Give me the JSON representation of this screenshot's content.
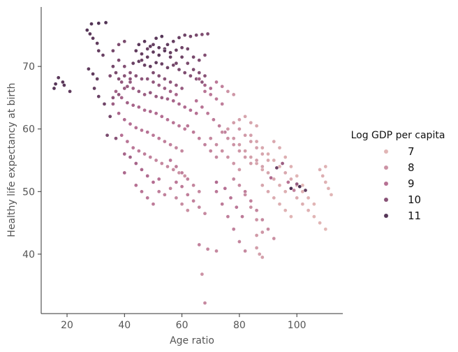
{
  "chart_data": {
    "type": "scatter",
    "xlabel": "Age ratio",
    "ylabel": "Healthy life expectancy at birth",
    "xlim": [
      11,
      116
    ],
    "ylim": [
      30.5,
      79.5
    ],
    "xticks": [
      20,
      40,
      60,
      80,
      100
    ],
    "yticks": [
      40,
      50,
      60,
      70
    ],
    "grid": false,
    "legend": {
      "title": "Log GDP per capita",
      "placement": "right",
      "entries": [
        {
          "label": "7",
          "value": 7
        },
        {
          "label": "8",
          "value": 8
        },
        {
          "label": "9",
          "value": 9
        },
        {
          "label": "10",
          "value": 10
        },
        {
          "label": "11",
          "value": 11
        }
      ]
    },
    "hue_range": [
      6.5,
      11.8
    ],
    "palette": {
      "low": "#ecc6bd",
      "mid": "#b36b91",
      "high": "#2d1e3e"
    },
    "points": [
      [
        28.5,
        76.8,
        11.0
      ],
      [
        31.0,
        76.9,
        11.1
      ],
      [
        33.5,
        77.0,
        11.1
      ],
      [
        27.0,
        75.8,
        11.0
      ],
      [
        28.0,
        75.2,
        10.9
      ],
      [
        29.0,
        74.5,
        10.8
      ],
      [
        30.5,
        73.7,
        10.8
      ],
      [
        31.0,
        72.5,
        10.7
      ],
      [
        32.5,
        71.8,
        10.6
      ],
      [
        27.5,
        69.6,
        10.8
      ],
      [
        29.0,
        68.8,
        10.8
      ],
      [
        30.5,
        68.0,
        10.7
      ],
      [
        17.0,
        68.2,
        10.9
      ],
      [
        16.0,
        67.2,
        11.0
      ],
      [
        15.5,
        66.5,
        11.0
      ],
      [
        18.5,
        67.5,
        10.9
      ],
      [
        19.0,
        67.0,
        10.9
      ],
      [
        21.0,
        66.0,
        10.8
      ],
      [
        29.5,
        66.5,
        10.7
      ],
      [
        31.0,
        65.2,
        10.6
      ],
      [
        33.0,
        64.0,
        10.5
      ],
      [
        35.0,
        62.0,
        10.4
      ],
      [
        34.0,
        59.0,
        10.3
      ],
      [
        37.0,
        58.5,
        10.0
      ],
      [
        45,
        73.5,
        10.9
      ],
      [
        47,
        74.0,
        10.9
      ],
      [
        49,
        73.2,
        10.8
      ],
      [
        51,
        74.5,
        10.9
      ],
      [
        53,
        74.8,
        11.0
      ],
      [
        55,
        73.5,
        10.8
      ],
      [
        57,
        74.0,
        10.7
      ],
      [
        59,
        74.6,
        10.6
      ],
      [
        61,
        75.0,
        10.5
      ],
      [
        63,
        74.8,
        10.4
      ],
      [
        65,
        75.0,
        10.3
      ],
      [
        67,
        75.1,
        10.2
      ],
      [
        69,
        75.2,
        10.2
      ],
      [
        44,
        72.5,
        10.8
      ],
      [
        46,
        72.0,
        10.7
      ],
      [
        48,
        71.5,
        10.7
      ],
      [
        50,
        72.3,
        10.8
      ],
      [
        52,
        71.8,
        10.9
      ],
      [
        54,
        72.8,
        10.8
      ],
      [
        56,
        72.2,
        10.7
      ],
      [
        58,
        72.6,
        10.6
      ],
      [
        60,
        73.0,
        10.5
      ],
      [
        62,
        72.8,
        10.4
      ],
      [
        64,
        71.5,
        10.3
      ],
      [
        66,
        71.0,
        10.2
      ],
      [
        68,
        71.8,
        10.1
      ],
      [
        43,
        70.5,
        10.6
      ],
      [
        45,
        70.8,
        10.7
      ],
      [
        47,
        70.2,
        10.6
      ],
      [
        49,
        70.0,
        10.7
      ],
      [
        51,
        70.6,
        10.8
      ],
      [
        53,
        70.4,
        10.6
      ],
      [
        55,
        69.8,
        10.5
      ],
      [
        57,
        70.2,
        10.4
      ],
      [
        59,
        69.5,
        10.3
      ],
      [
        61,
        69.0,
        10.2
      ],
      [
        63,
        68.5,
        10.1
      ],
      [
        65,
        68.0,
        10.0
      ],
      [
        67,
        67.5,
        9.9
      ],
      [
        38,
        73.5,
        10.2
      ],
      [
        40,
        74.0,
        10.3
      ],
      [
        36,
        72.5,
        10.4
      ],
      [
        38,
        71.0,
        10.2
      ],
      [
        40,
        70.0,
        10.1
      ],
      [
        42,
        69.0,
        10.0
      ],
      [
        39,
        67.5,
        9.8
      ],
      [
        41,
        66.8,
        9.7
      ],
      [
        43,
        66.5,
        9.6
      ],
      [
        45,
        66.0,
        9.7
      ],
      [
        47,
        65.5,
        9.6
      ],
      [
        49,
        65.8,
        9.8
      ],
      [
        51,
        65.2,
        9.7
      ],
      [
        53,
        65.0,
        9.6
      ],
      [
        55,
        64.8,
        9.5
      ],
      [
        57,
        64.5,
        9.4
      ],
      [
        59,
        64.0,
        9.3
      ],
      [
        61,
        63.5,
        9.2
      ],
      [
        63,
        63.0,
        9.1
      ],
      [
        65,
        62.5,
        9.0
      ],
      [
        37,
        66.0,
        9.5
      ],
      [
        39,
        65.0,
        9.4
      ],
      [
        41,
        64.2,
        9.5
      ],
      [
        43,
        63.8,
        9.4
      ],
      [
        45,
        63.5,
        9.3
      ],
      [
        47,
        63.0,
        9.2
      ],
      [
        49,
        62.8,
        9.3
      ],
      [
        51,
        62.5,
        9.2
      ],
      [
        53,
        62.0,
        9.1
      ],
      [
        55,
        61.5,
        9.0
      ],
      [
        57,
        61.0,
        8.9
      ],
      [
        59,
        60.5,
        8.8
      ],
      [
        61,
        60.0,
        8.7
      ],
      [
        36,
        64.0,
        9.6
      ],
      [
        38,
        62.5,
        9.3
      ],
      [
        40,
        61.5,
        9.2
      ],
      [
        42,
        60.8,
        9.1
      ],
      [
        44,
        60.2,
        9.0
      ],
      [
        46,
        59.8,
        8.9
      ],
      [
        48,
        59.5,
        9.0
      ],
      [
        50,
        59.0,
        8.8
      ],
      [
        52,
        58.5,
        8.7
      ],
      [
        54,
        58.0,
        8.6
      ],
      [
        56,
        57.5,
        8.5
      ],
      [
        58,
        57.0,
        8.4
      ],
      [
        60,
        56.5,
        8.3
      ],
      [
        39,
        59.0,
        9.0
      ],
      [
        41,
        58.0,
        8.9
      ],
      [
        43,
        57.0,
        8.8
      ],
      [
        45,
        56.5,
        8.7
      ],
      [
        47,
        56.0,
        8.6
      ],
      [
        49,
        55.5,
        8.5
      ],
      [
        51,
        55.0,
        8.4
      ],
      [
        53,
        54.5,
        8.3
      ],
      [
        55,
        54.0,
        8.3
      ],
      [
        57,
        53.5,
        8.2
      ],
      [
        59,
        53.0,
        8.1
      ],
      [
        61,
        52.5,
        8.0
      ],
      [
        40,
        56.0,
        9.4
      ],
      [
        40,
        53.0,
        9.3
      ],
      [
        44,
        51.0,
        9.0
      ],
      [
        46,
        50.0,
        8.9
      ],
      [
        48,
        49.0,
        8.8
      ],
      [
        50,
        48.0,
        8.7
      ],
      [
        52,
        50.0,
        8.6
      ],
      [
        54,
        49.5,
        8.5
      ],
      [
        56,
        50.5,
        8.4
      ],
      [
        58,
        49.0,
        8.3
      ],
      [
        60,
        48.0,
        8.2
      ],
      [
        62,
        47.0,
        8.1
      ],
      [
        58,
        51.5,
        8.8
      ],
      [
        60,
        50.8,
        8.7
      ],
      [
        62,
        49.5,
        8.6
      ],
      [
        64,
        48.5,
        8.5
      ],
      [
        66,
        47.5,
        8.4
      ],
      [
        68,
        46.5,
        8.3
      ],
      [
        62,
        60.5,
        8.8
      ],
      [
        64,
        59.5,
        8.7
      ],
      [
        66,
        58.5,
        8.6
      ],
      [
        68,
        57.5,
        8.5
      ],
      [
        70,
        56.5,
        8.4
      ],
      [
        72,
        55.5,
        8.3
      ],
      [
        65,
        64.5,
        9.0
      ],
      [
        67,
        63.5,
        8.9
      ],
      [
        69,
        62.5,
        8.8
      ],
      [
        71,
        61.5,
        8.7
      ],
      [
        73,
        60.5,
        8.6
      ],
      [
        75,
        59.5,
        8.5
      ],
      [
        68,
        66.0,
        8.9
      ],
      [
        70,
        65.5,
        8.8
      ],
      [
        72,
        64.8,
        8.7
      ],
      [
        74,
        64.0,
        8.6
      ],
      [
        76,
        66.0,
        8.0
      ],
      [
        78,
        65.5,
        7.9
      ],
      [
        66,
        68.0,
        9.6
      ],
      [
        68,
        67.0,
        9.4
      ],
      [
        70,
        66.5,
        9.2
      ],
      [
        72,
        67.5,
        8.8
      ],
      [
        74,
        66.8,
        8.5
      ],
      [
        70,
        58.5,
        8.3
      ],
      [
        72,
        57.5,
        8.2
      ],
      [
        74,
        56.5,
        8.1
      ],
      [
        76,
        55.5,
        8.0
      ],
      [
        78,
        54.5,
        7.9
      ],
      [
        80,
        53.5,
        7.8
      ],
      [
        74,
        59.5,
        8.2
      ],
      [
        76,
        58.5,
        8.1
      ],
      [
        78,
        57.5,
        8.0
      ],
      [
        80,
        56.5,
        7.9
      ],
      [
        82,
        55.5,
        7.8
      ],
      [
        84,
        54.5,
        7.7
      ],
      [
        78,
        58.5,
        7.9
      ],
      [
        80,
        57.5,
        7.8
      ],
      [
        82,
        56.5,
        7.7
      ],
      [
        84,
        55.5,
        7.6
      ],
      [
        86,
        54.5,
        7.5
      ],
      [
        88,
        53.5,
        7.4
      ],
      [
        80,
        60.0,
        7.9
      ],
      [
        82,
        59.0,
        7.8
      ],
      [
        84,
        58.0,
        7.7
      ],
      [
        86,
        57.0,
        7.6
      ],
      [
        88,
        56.0,
        7.5
      ],
      [
        90,
        55.0,
        7.4
      ],
      [
        84,
        59.0,
        7.6
      ],
      [
        86,
        58.0,
        7.5
      ],
      [
        88,
        57.0,
        7.4
      ],
      [
        90,
        56.0,
        7.3
      ],
      [
        92,
        55.0,
        7.2
      ],
      [
        94,
        54.0,
        7.1
      ],
      [
        86,
        55.0,
        7.7
      ],
      [
        88,
        54.0,
        7.6
      ],
      [
        90,
        53.0,
        7.5
      ],
      [
        92,
        52.0,
        7.4
      ],
      [
        94,
        51.0,
        7.3
      ],
      [
        96,
        50.0,
        7.2
      ],
      [
        88,
        51.0,
        7.5
      ],
      [
        90,
        50.0,
        7.4
      ],
      [
        92,
        49.0,
        7.3
      ],
      [
        94,
        48.0,
        7.2
      ],
      [
        96,
        47.0,
        7.1
      ],
      [
        98,
        46.0,
        7.0
      ],
      [
        92,
        58.0,
        7.4
      ],
      [
        94,
        57.0,
        7.3
      ],
      [
        96,
        55.5,
        7.2
      ],
      [
        98,
        54.0,
        7.1
      ],
      [
        100,
        52.5,
        7.0
      ],
      [
        102,
        51.0,
        6.9
      ],
      [
        96,
        53.0,
        7.4
      ],
      [
        98,
        52.0,
        7.3
      ],
      [
        100,
        51.0,
        7.3
      ],
      [
        102,
        50.0,
        7.2
      ],
      [
        104,
        49.0,
        7.1
      ],
      [
        106,
        48.0,
        7.0
      ],
      [
        100,
        49.0,
        7.3
      ],
      [
        102,
        48.0,
        7.2
      ],
      [
        104,
        47.0,
        7.1
      ],
      [
        106,
        46.0,
        7.0
      ],
      [
        108,
        45.0,
        7.0
      ],
      [
        110,
        44.0,
        6.9
      ],
      [
        108,
        53.5,
        7.2
      ],
      [
        109,
        52.5,
        7.2
      ],
      [
        110,
        51.5,
        7.1
      ],
      [
        111,
        50.5,
        7.1
      ],
      [
        112,
        49.5,
        7.0
      ],
      [
        110,
        54.0,
        7.1
      ],
      [
        98,
        50.5,
        11.2
      ],
      [
        101,
        50.8,
        11.1
      ],
      [
        103,
        50.2,
        10.8
      ],
      [
        100,
        51.2,
        9.8
      ],
      [
        72,
        50.0,
        8.8
      ],
      [
        74,
        48.0,
        8.7
      ],
      [
        76,
        46.0,
        8.6
      ],
      [
        78,
        44.0,
        8.5
      ],
      [
        80,
        42.0,
        8.4
      ],
      [
        82,
        40.5,
        8.3
      ],
      [
        82,
        50.0,
        8.6
      ],
      [
        84,
        48.5,
        8.5
      ],
      [
        86,
        47.0,
        8.4
      ],
      [
        88,
        45.5,
        8.3
      ],
      [
        90,
        44.0,
        8.2
      ],
      [
        92,
        42.5,
        8.1
      ],
      [
        78,
        52.0,
        8.4
      ],
      [
        80,
        51.0,
        8.3
      ],
      [
        82,
        49.5,
        8.2
      ],
      [
        84,
        47.5,
        8.1
      ],
      [
        86,
        45.5,
        8.0
      ],
      [
        88,
        43.5,
        7.9
      ],
      [
        86,
        41.0,
        7.7
      ],
      [
        87,
        40.0,
        7.6
      ],
      [
        88,
        39.5,
        7.6
      ],
      [
        86,
        43.0,
        7.8
      ],
      [
        66,
        41.5,
        8.5
      ],
      [
        69,
        40.8,
        8.4
      ],
      [
        72,
        40.5,
        8.3
      ],
      [
        67,
        36.8,
        8.0
      ],
      [
        68,
        32.2,
        8.3
      ],
      [
        42,
        55.5,
        9.5
      ],
      [
        44,
        54.5,
        9.4
      ],
      [
        46,
        53.5,
        9.3
      ],
      [
        48,
        52.5,
        9.2
      ],
      [
        50,
        51.5,
        9.1
      ],
      [
        52,
        52.0,
        9.0
      ],
      [
        56,
        55.0,
        8.8
      ],
      [
        58,
        54.0,
        8.7
      ],
      [
        60,
        53.0,
        8.6
      ],
      [
        62,
        52.0,
        8.5
      ],
      [
        64,
        51.0,
        8.4
      ],
      [
        66,
        50.0,
        8.3
      ],
      [
        48,
        68.0,
        9.9
      ],
      [
        50,
        67.5,
        9.8
      ],
      [
        52,
        67.0,
        9.7
      ],
      [
        54,
        66.5,
        9.6
      ],
      [
        56,
        66.0,
        9.5
      ],
      [
        58,
        65.5,
        9.4
      ],
      [
        44,
        68.5,
        10.0
      ],
      [
        46,
        68.0,
        9.9
      ],
      [
        42,
        67.5,
        9.8
      ],
      [
        40,
        66.5,
        9.7
      ],
      [
        38,
        65.5,
        9.8
      ],
      [
        36,
        65.0,
        9.9
      ],
      [
        50,
        69.0,
        10.2
      ],
      [
        52,
        68.5,
        10.1
      ],
      [
        54,
        68.0,
        10.0
      ],
      [
        56,
        67.5,
        9.9
      ],
      [
        58,
        67.0,
        9.8
      ],
      [
        60,
        66.5,
        9.7
      ],
      [
        46,
        71.0,
        10.5
      ],
      [
        48,
        72.8,
        10.6
      ],
      [
        50,
        73.5,
        10.7
      ],
      [
        52,
        73.0,
        10.8
      ],
      [
        54,
        72.5,
        10.9
      ],
      [
        56,
        71.5,
        10.6
      ],
      [
        58,
        70.5,
        10.4
      ],
      [
        60,
        71.5,
        10.5
      ],
      [
        62,
        70.5,
        10.3
      ],
      [
        64,
        69.5,
        10.2
      ],
      [
        66,
        69.0,
        10.1
      ],
      [
        68,
        68.5,
        10.0
      ],
      [
        35,
        68.5,
        10.2
      ],
      [
        37,
        69.0,
        10.3
      ],
      [
        36,
        70.0,
        10.4
      ],
      [
        38,
        68.0,
        10.1
      ],
      [
        40,
        68.5,
        10.0
      ],
      [
        42,
        68.0,
        9.9
      ],
      [
        93,
        53.8,
        10.5
      ],
      [
        95,
        54.5,
        9.6
      ],
      [
        91,
        52.2,
        9.2
      ],
      [
        97,
        51.5,
        8.9
      ],
      [
        99,
        50.2,
        8.5
      ],
      [
        72,
        51.5,
        9.2
      ],
      [
        75,
        50.5,
        9.0
      ],
      [
        77,
        49.0,
        8.9
      ],
      [
        79,
        47.5,
        8.8
      ],
      [
        81,
        46.0,
        8.7
      ],
      [
        76,
        60.0,
        7.8
      ],
      [
        78,
        61.0,
        7.7
      ],
      [
        80,
        61.5,
        7.6
      ],
      [
        82,
        62.0,
        7.5
      ],
      [
        84,
        61.0,
        7.5
      ],
      [
        86,
        60.5,
        7.4
      ]
    ]
  }
}
